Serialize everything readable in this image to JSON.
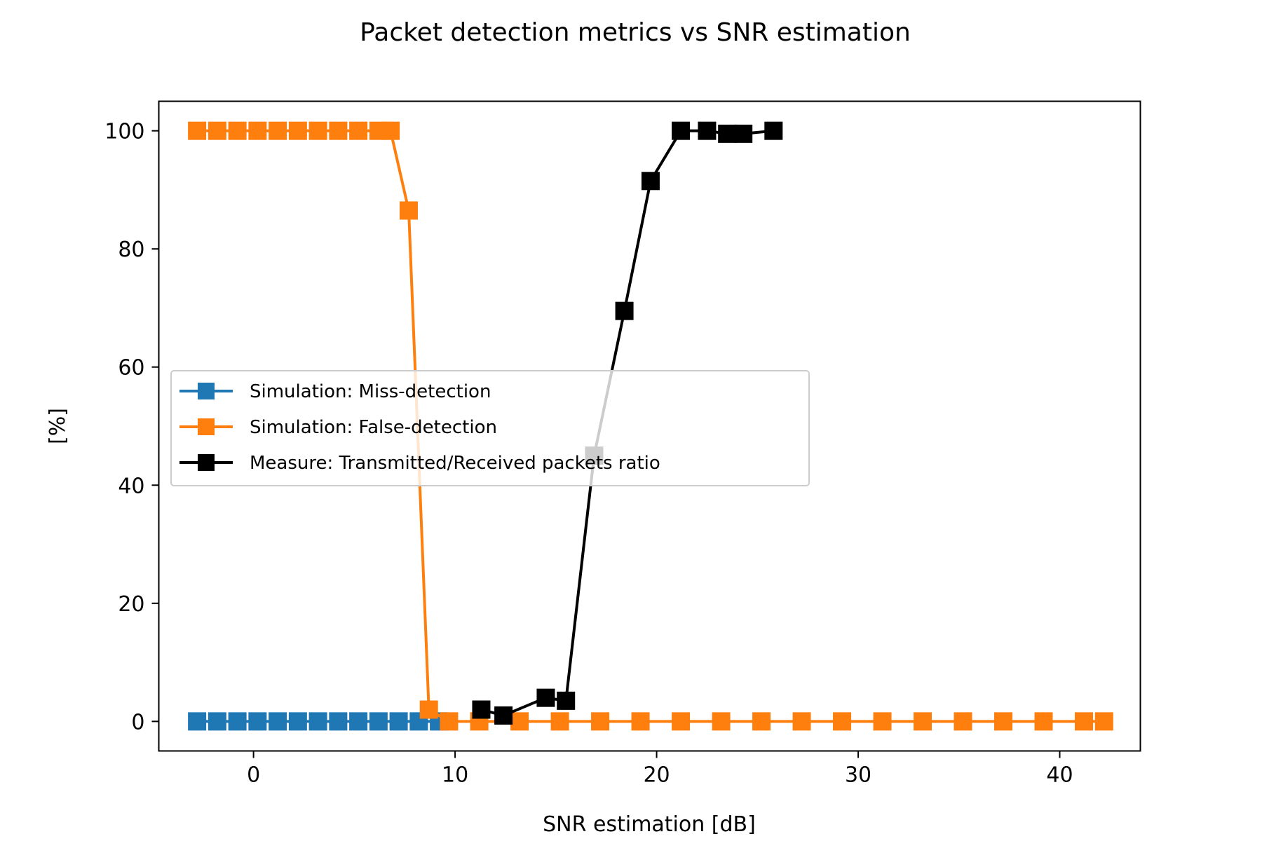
{
  "chart_data": {
    "type": "line",
    "title": "Packet detection metrics vs SNR estimation",
    "xlabel": "SNR estimation [dB]",
    "ylabel": "[%]",
    "xlim": [
      -4.7,
      44
    ],
    "ylim": [
      -5,
      105
    ],
    "xticks": [
      0,
      10,
      20,
      30,
      40
    ],
    "yticks": [
      0,
      20,
      40,
      60,
      80,
      100
    ],
    "grid": false,
    "legend_position": "center-left",
    "series": [
      {
        "name": "Simulation: Miss-detection",
        "color": "#1f77b4",
        "marker": "square",
        "x": [
          -2.8,
          -1.8,
          -0.8,
          0.2,
          1.2,
          2.2,
          3.2,
          4.2,
          5.2,
          6.2,
          7.2,
          8.2,
          9.2
        ],
        "y": [
          0,
          0,
          0,
          0,
          0,
          0,
          0,
          0,
          0,
          0,
          0,
          0,
          0
        ]
      },
      {
        "name": "Simulation: False-detection",
        "color": "#ff7f0e",
        "marker": "square",
        "x": [
          -2.8,
          -1.8,
          -0.8,
          0.2,
          1.2,
          2.2,
          3.2,
          4.2,
          5.2,
          6.2,
          6.8,
          7.7,
          8.7,
          9.7,
          11.2,
          13.2,
          15.2,
          17.2,
          19.2,
          21.2,
          23.2,
          25.2,
          27.2,
          29.2,
          31.2,
          33.2,
          35.2,
          37.2,
          39.2,
          41.2,
          42.2
        ],
        "y": [
          100,
          100,
          100,
          100,
          100,
          100,
          100,
          100,
          100,
          100,
          100,
          86.5,
          2,
          0,
          0,
          0,
          0,
          0,
          0,
          0,
          0,
          0,
          0,
          0,
          0,
          0,
          0,
          0,
          0,
          0,
          0
        ]
      },
      {
        "name": "Measure: Transmitted/Received packets ratio",
        "color": "#000000",
        "marker": "square",
        "x": [
          11.3,
          12.4,
          14.5,
          15.5,
          16.9,
          18.4,
          19.7,
          21.2,
          22.5,
          23.5,
          24.3,
          25.8
        ],
        "y": [
          2,
          1,
          4,
          3.5,
          45,
          69.5,
          91.5,
          100,
          100,
          99.5,
          99.5,
          100
        ]
      }
    ]
  }
}
